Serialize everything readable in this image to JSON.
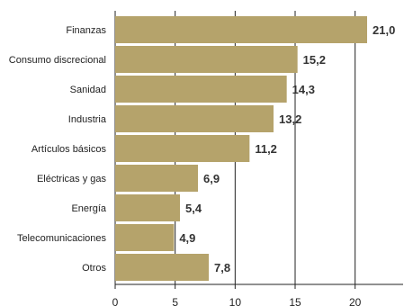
{
  "chart_data": {
    "type": "bar",
    "orientation": "horizontal",
    "categories": [
      "Finanzas",
      "Consumo discrecional",
      "Sanidad",
      "Industria",
      "Artículos básicos",
      "Eléctricas y gas",
      "Energía",
      "Telecomunicaciones",
      "Otros"
    ],
    "values": [
      21.0,
      15.2,
      14.3,
      13.2,
      11.2,
      6.9,
      5.4,
      4.9,
      7.8
    ],
    "value_labels": [
      "21,0",
      "15,2",
      "14,3",
      "13,2",
      "11,2",
      "6,9",
      "5,4",
      "4,9",
      "7,8"
    ],
    "xlim": [
      0,
      24
    ],
    "x_ticks": [
      0,
      5,
      10,
      15,
      20
    ],
    "x_tick_labels": [
      "0",
      "5",
      "10",
      "15",
      "20"
    ],
    "grid": "vertical",
    "title": "",
    "xlabel": "",
    "ylabel": "",
    "colors": {
      "bar": "#b5a36b",
      "grid": "#222222",
      "axis": "#222222"
    }
  }
}
